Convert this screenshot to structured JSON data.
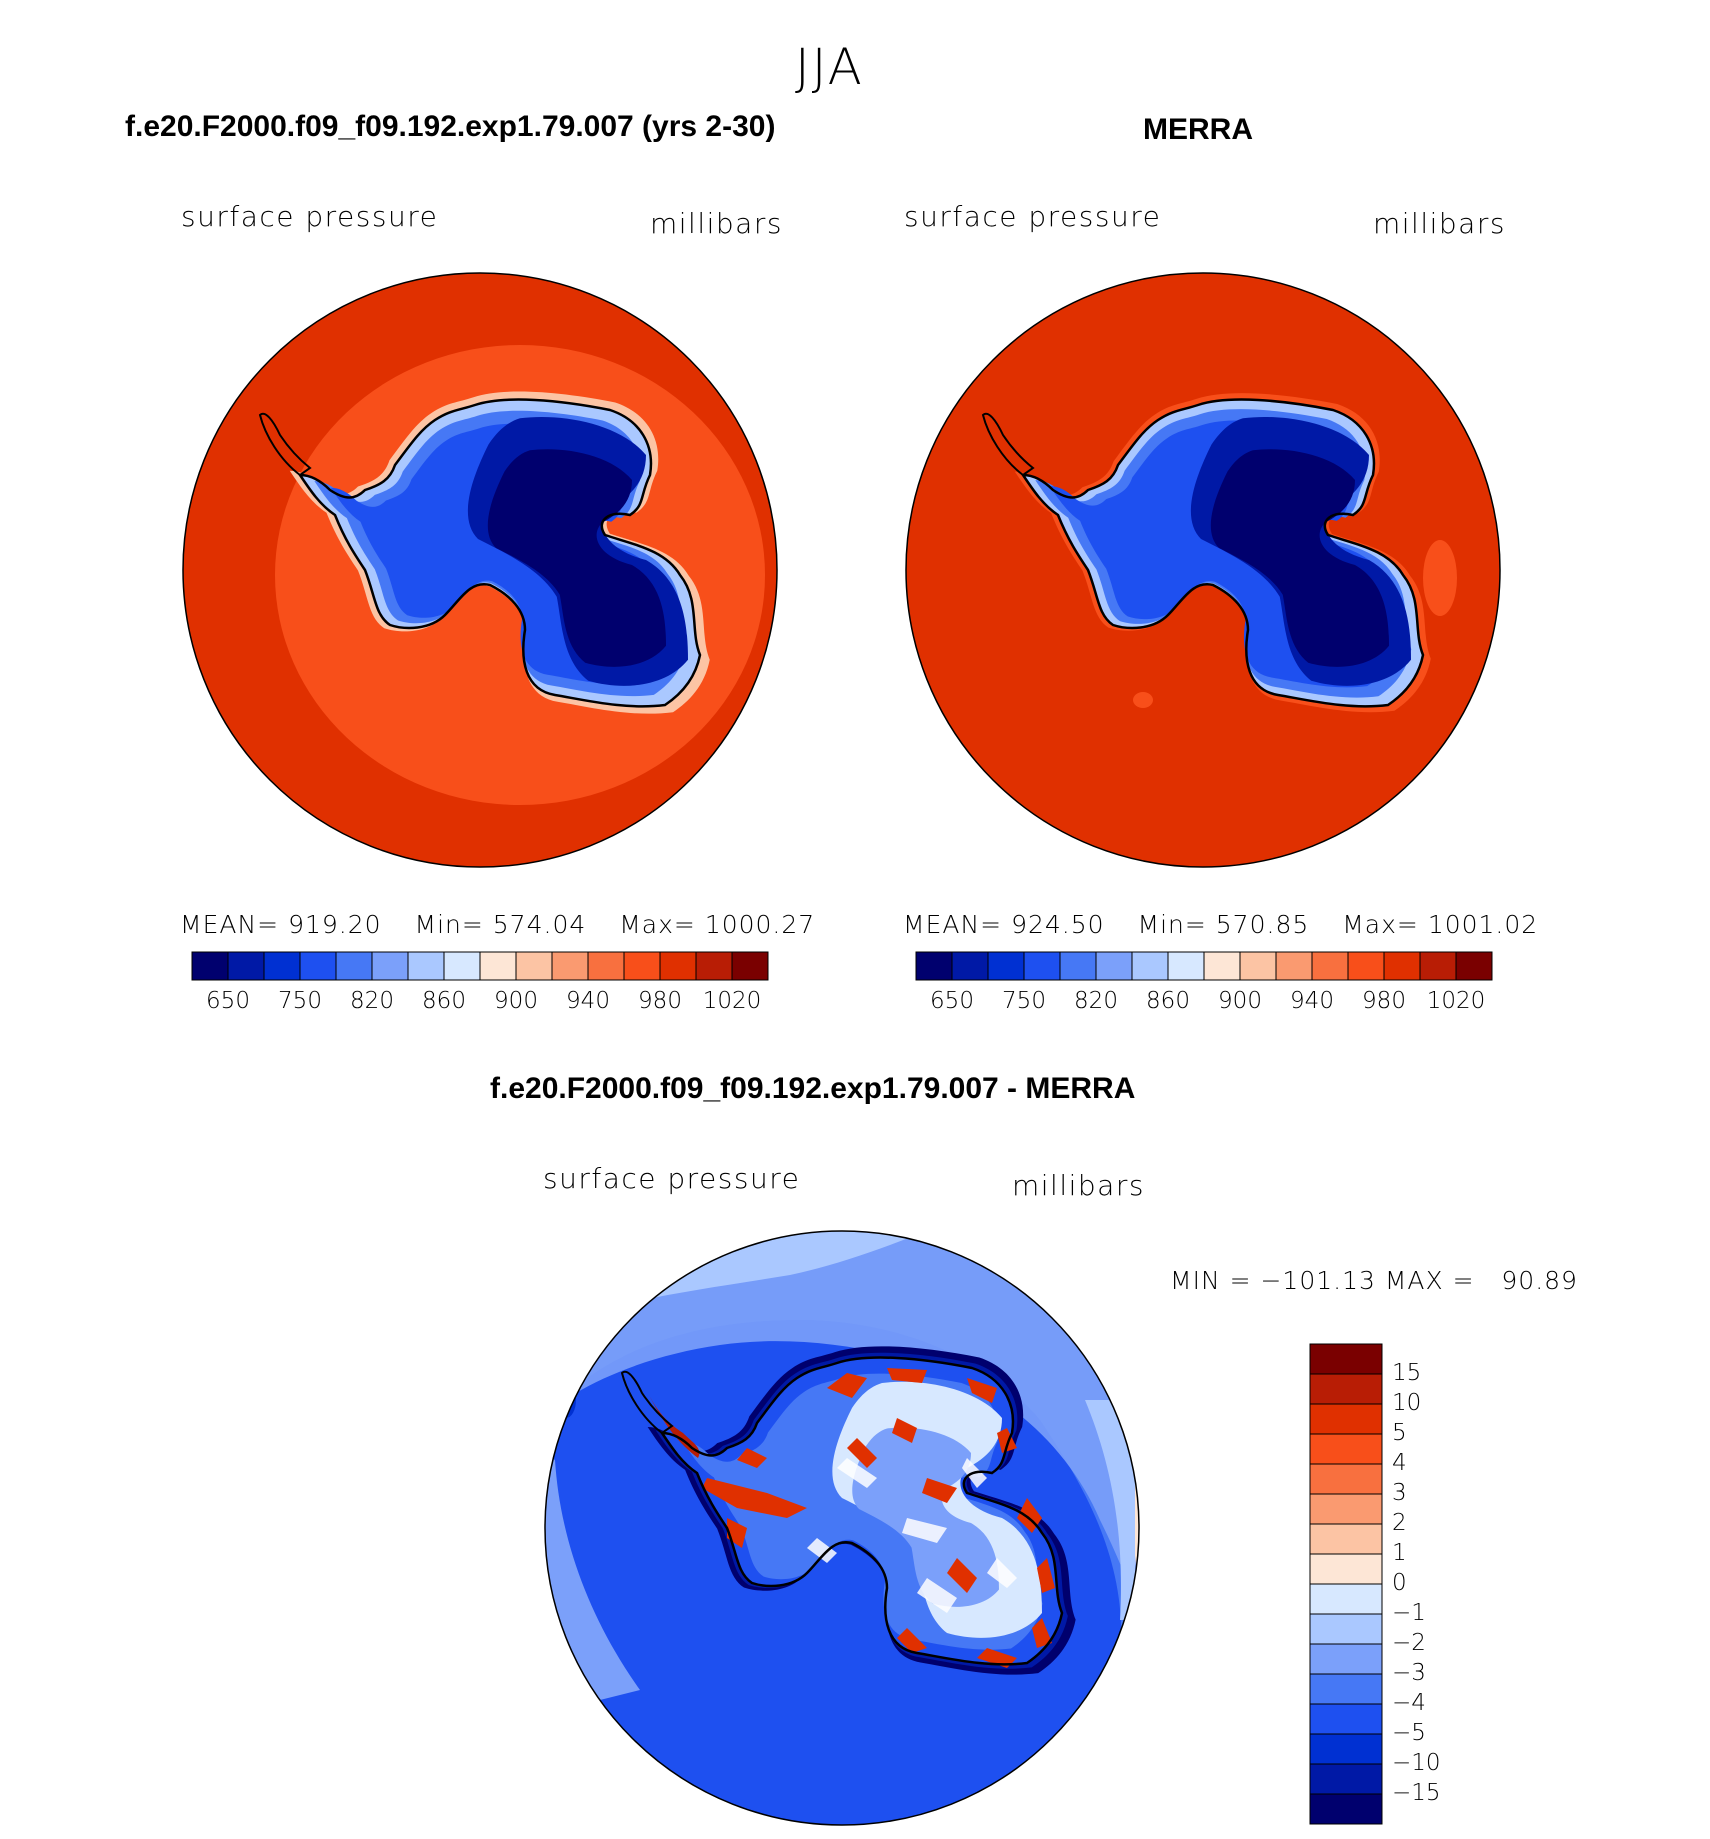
{
  "figure": {
    "season": "JJA",
    "colors": {
      "land_outline": "#000000",
      "background": "#ffffff"
    }
  },
  "panels": {
    "model": {
      "title": "f.e20.F2000.f09_f09.192.exp1.79.007 (yrs 2-30)",
      "variable": "surface pressure",
      "units": "millibars",
      "stats": {
        "mean_label": "MEAN=",
        "mean": "919.20",
        "min_label": "Min=",
        "min": "574.04",
        "max_label": "Max=",
        "max": "1000.27"
      }
    },
    "obs": {
      "title": "MERRA",
      "variable": "surface pressure",
      "units": "millibars",
      "stats": {
        "mean_label": "MEAN=",
        "mean": "924.50",
        "min_label": "Min=",
        "min": "570.85",
        "max_label": "Max=",
        "max": "1001.02"
      }
    },
    "diff": {
      "title": "f.e20.F2000.f09_f09.192.exp1.79.007 - MERRA",
      "variable": "surface pressure",
      "units": "millibars",
      "stats": {
        "text": "MIN = −101.13 MAX =   90.89"
      }
    }
  },
  "chart_data": [
    {
      "type": "heatmap",
      "projection": "south-polar-stereographic",
      "title": "f.e20.F2000.f09_f09.192.exp1.79.007 (yrs 2-30)",
      "field": "surface pressure",
      "units": "millibars",
      "mean": 919.2,
      "min": 574.04,
      "max": 1000.27,
      "colorbar": {
        "orientation": "horizontal",
        "tick_labels": [
          "650",
          "750",
          "820",
          "860",
          "900",
          "940",
          "980",
          "1020"
        ],
        "colors": [
          "#00006e",
          "#0019a6",
          "#0030d2",
          "#1e50f0",
          "#4678f5",
          "#7ba0fa",
          "#aac8ff",
          "#d7e8ff",
          "#fde6d6",
          "#fcc4a4",
          "#fa9a70",
          "#f8703f",
          "#f84f1a",
          "#e03000",
          "#b81d05",
          "#7a0000"
        ]
      }
    },
    {
      "type": "heatmap",
      "projection": "south-polar-stereographic",
      "title": "MERRA",
      "field": "surface pressure",
      "units": "millibars",
      "mean": 924.5,
      "min": 570.85,
      "max": 1001.02,
      "colorbar": {
        "orientation": "horizontal",
        "tick_labels": [
          "650",
          "750",
          "820",
          "860",
          "900",
          "940",
          "980",
          "1020"
        ],
        "colors": [
          "#00006e",
          "#0019a6",
          "#0030d2",
          "#1e50f0",
          "#4678f5",
          "#7ba0fa",
          "#aac8ff",
          "#d7e8ff",
          "#fde6d6",
          "#fcc4a4",
          "#fa9a70",
          "#f8703f",
          "#f84f1a",
          "#e03000",
          "#b81d05",
          "#7a0000"
        ]
      }
    },
    {
      "type": "heatmap",
      "projection": "south-polar-stereographic",
      "title": "f.e20.F2000.f09_f09.192.exp1.79.007 - MERRA",
      "field": "surface pressure difference",
      "units": "millibars",
      "min": -101.13,
      "max": 90.89,
      "colorbar": {
        "orientation": "vertical",
        "tick_labels": [
          "15",
          "10",
          "5",
          "4",
          "3",
          "2",
          "1",
          "0",
          "−1",
          "−2",
          "−3",
          "−4",
          "−5",
          "−10",
          "−15"
        ],
        "colors": [
          "#7a0000",
          "#b81d05",
          "#e03000",
          "#f84f1a",
          "#f8703f",
          "#fa9a70",
          "#fcc4a4",
          "#fde6d6",
          "#d7e8ff",
          "#aac8ff",
          "#7ba0fa",
          "#4678f5",
          "#1e50f0",
          "#0030d2",
          "#0019a6",
          "#00006e"
        ]
      }
    }
  ]
}
